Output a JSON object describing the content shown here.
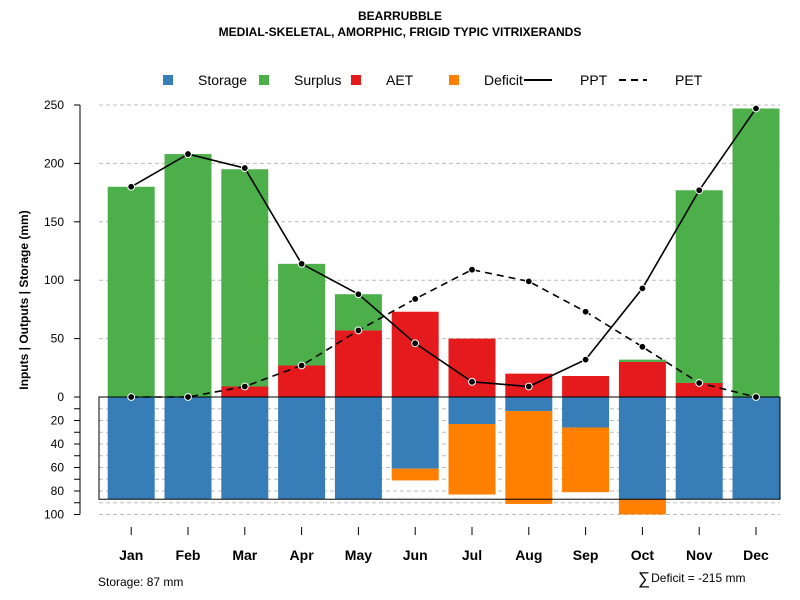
{
  "chart_data": {
    "type": "bar",
    "title": "BEARRUBBLE",
    "subtitle": "MEDIAL-SKELETAL, AMORPHIC, FRIGID TYPIC VITRIXERANDS",
    "ylabel": "Inputs | Outputs | Storage    (mm)",
    "ylim_top": [
      0,
      250
    ],
    "yticks_top": [
      0,
      50,
      100,
      150,
      200,
      250
    ],
    "ylim_bottom": [
      0,
      100
    ],
    "yticks_bottom": [
      20,
      40,
      60,
      80,
      100
    ],
    "categories": [
      "Jan",
      "Feb",
      "Mar",
      "Apr",
      "May",
      "Jun",
      "Jul",
      "Aug",
      "Sep",
      "Oct",
      "Nov",
      "Dec"
    ],
    "legend": [
      {
        "name": "Storage",
        "color": "#377EB8",
        "kind": "box"
      },
      {
        "name": "Surplus",
        "color": "#4DAF4A",
        "kind": "box"
      },
      {
        "name": "AET",
        "color": "#E41A1C",
        "kind": "box"
      },
      {
        "name": "Deficit",
        "color": "#FF7F00",
        "kind": "box"
      },
      {
        "name": "PPT",
        "color": "#000000",
        "kind": "solid"
      },
      {
        "name": "PET",
        "color": "#000000",
        "kind": "dashed"
      }
    ],
    "series": [
      {
        "name": "AET",
        "values": [
          0,
          0,
          9,
          27,
          57,
          73,
          50,
          20,
          18,
          30,
          12,
          0
        ]
      },
      {
        "name": "Surplus",
        "values": [
          180,
          208,
          186,
          87,
          31,
          0,
          0,
          0,
          0,
          2,
          165,
          247
        ]
      },
      {
        "name": "Storage",
        "values": [
          87,
          87,
          87,
          87,
          87,
          61,
          23,
          12,
          26,
          87,
          87,
          87
        ]
      },
      {
        "name": "Deficit",
        "values": [
          0,
          0,
          0,
          0,
          0,
          10,
          60,
          79,
          55,
          13,
          0,
          0
        ]
      },
      {
        "name": "PPT",
        "values": [
          180,
          208,
          196,
          114,
          88,
          46,
          13,
          9,
          32,
          93,
          177,
          247
        ]
      },
      {
        "name": "PET",
        "values": [
          0,
          0,
          9,
          27,
          57,
          84,
          109,
          99,
          73,
          43,
          12,
          0
        ]
      }
    ],
    "storage_capacity": 87
  },
  "footer": {
    "storage_label": "Storage: 87 mm",
    "deficit_symbol": "∑",
    "deficit_label": "Deficit = -215 mm"
  },
  "colors": {
    "storage": "#377EB8",
    "surplus": "#4DAF4A",
    "aet": "#E41A1C",
    "deficit": "#FF7F00",
    "grid": "#bbbbbb"
  }
}
